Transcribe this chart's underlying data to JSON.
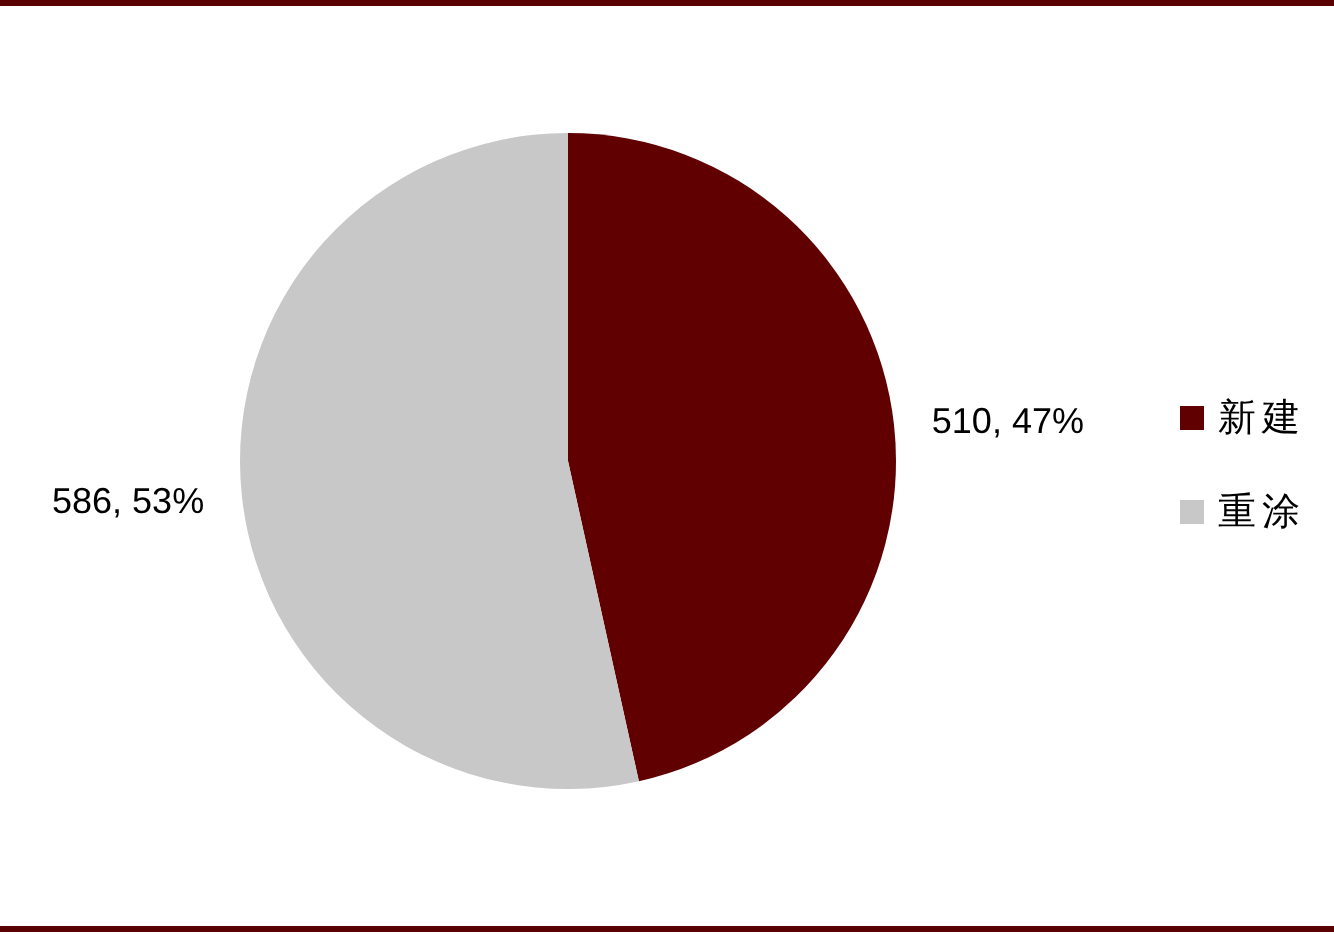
{
  "chart_data": {
    "type": "pie",
    "categories": [
      "新建",
      "重涂"
    ],
    "values": [
      510,
      586
    ],
    "colors": [
      "#600000",
      "#c8c8c8"
    ],
    "value_labels": [
      "510, 47%",
      "586, 53%"
    ],
    "legend": "right"
  }
}
